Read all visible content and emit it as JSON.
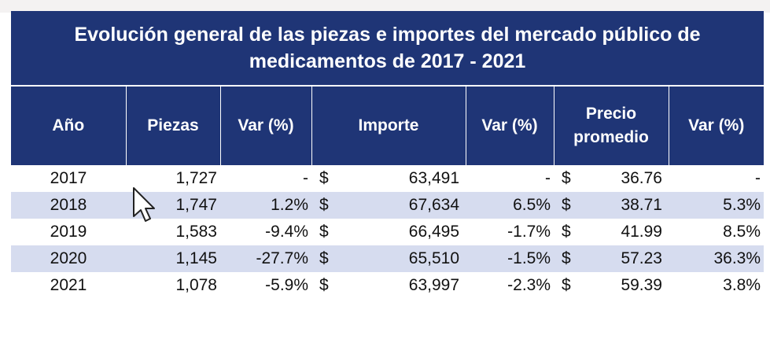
{
  "table": {
    "title_line1": "Evolución general de las piezas e importes del mercado público de",
    "title_line2": "medicamentos de 2017 - 2021",
    "headers": {
      "year": "Año",
      "pieces": "Piezas",
      "var1": "Var (%)",
      "amount": "Importe",
      "var2": "Var (%)",
      "price_line1": "Precio",
      "price_line2": "promedio",
      "var3": "Var (%)"
    },
    "currency_symbol": "$",
    "rows": [
      {
        "year": "2017",
        "pieces": "1,727",
        "var1": "-",
        "amount": "63,491",
        "var2": "-",
        "price": "36.76",
        "var3": "-"
      },
      {
        "year": "2018",
        "pieces": "1,747",
        "var1": "1.2%",
        "amount": "67,634",
        "var2": "6.5%",
        "price": "38.71",
        "var3": "5.3%"
      },
      {
        "year": "2019",
        "pieces": "1,583",
        "var1": "-9.4%",
        "amount": "66,495",
        "var2": "-1.7%",
        "price": "41.99",
        "var3": "8.5%"
      },
      {
        "year": "2020",
        "pieces": "1,145",
        "var1": "-27.7%",
        "amount": "65,510",
        "var2": "-1.5%",
        "price": "57.23",
        "var3": "36.3%"
      },
      {
        "year": "2021",
        "pieces": "1,078",
        "var1": "-5.9%",
        "amount": "63,997",
        "var2": "-2.3%",
        "price": "59.39",
        "var3": "3.8%"
      }
    ]
  },
  "colors": {
    "header_bg": "#1f3576",
    "band_bg": "#d6dcef"
  }
}
